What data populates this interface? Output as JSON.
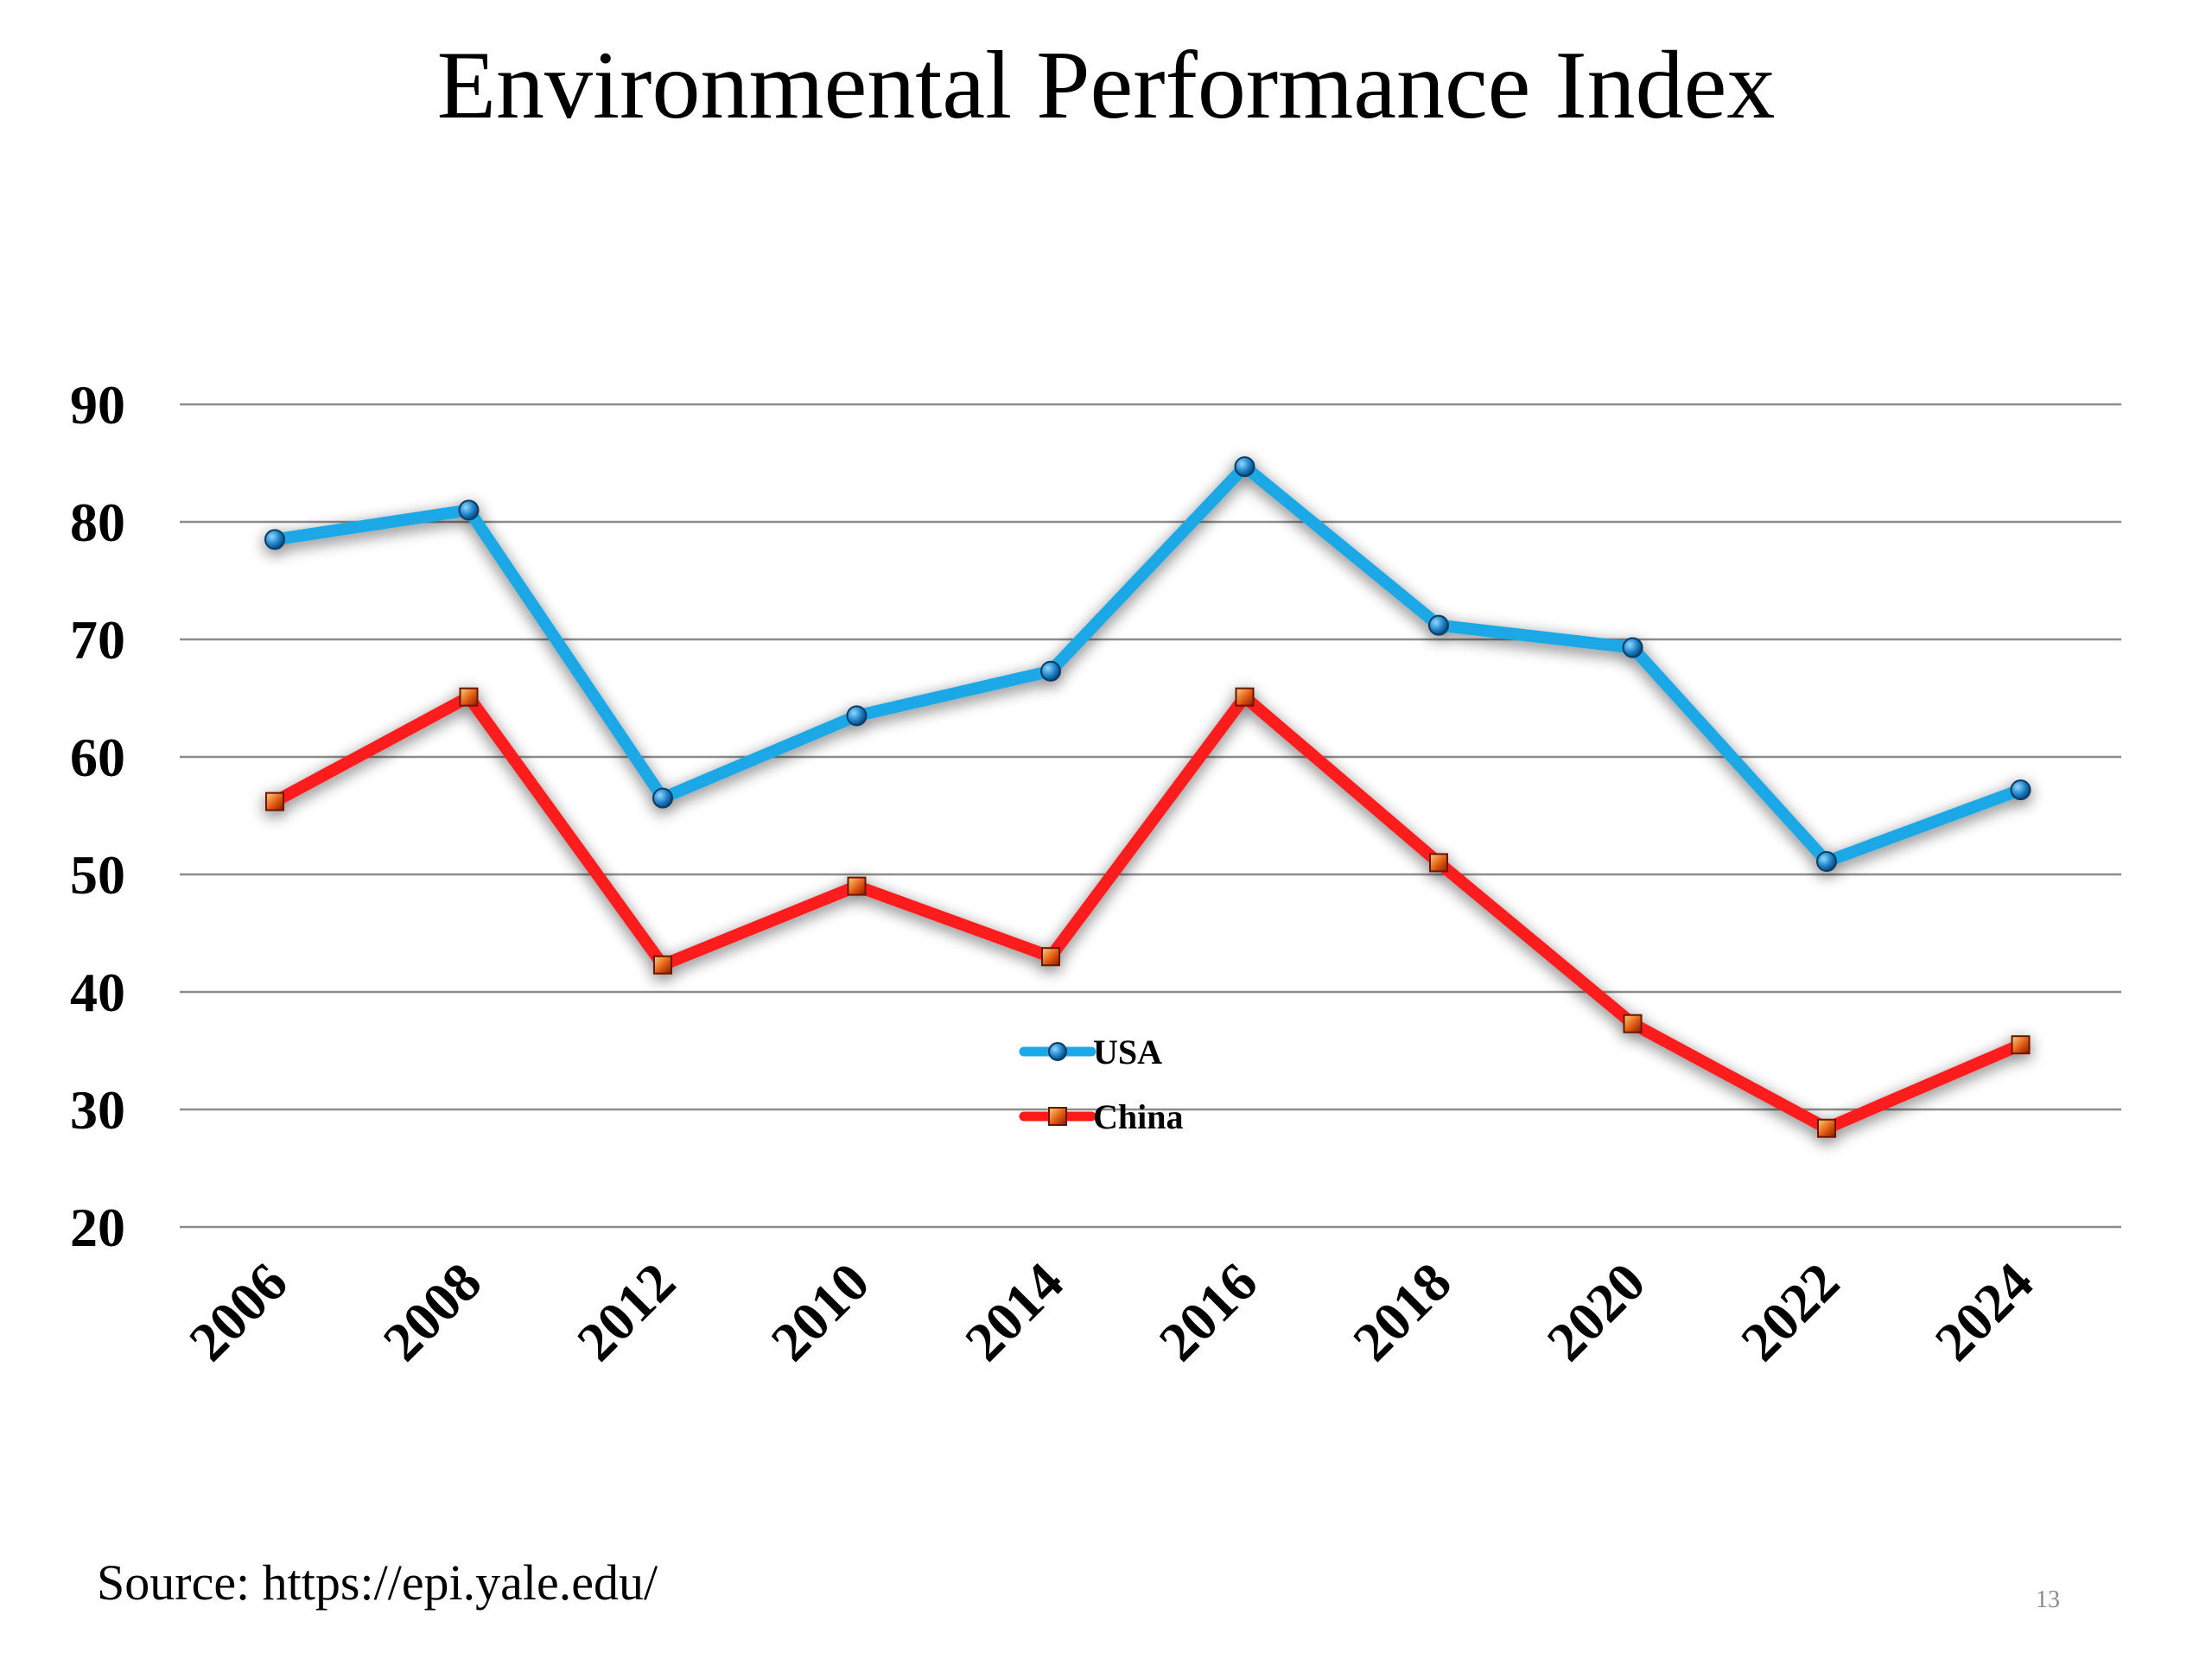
{
  "slide": {
    "title": "Environmental Performance Index",
    "source": "Source: https://epi.yale.edu/",
    "page_number": "13"
  },
  "chart_data": {
    "type": "line",
    "title": "",
    "xlabel": "",
    "ylabel": "",
    "categories": [
      "2006",
      "2008",
      "2012",
      "2010",
      "2014",
      "2016",
      "2018",
      "2020",
      "2022",
      "2024"
    ],
    "y_ticks": [
      "20",
      "30",
      "40",
      "50",
      "60",
      "70",
      "80",
      "90"
    ],
    "ylim": [
      20,
      90
    ],
    "grid": true,
    "legend_position": "center",
    "series": [
      {
        "name": "USA",
        "color": "#1aa8e6",
        "marker": "circle",
        "values": [
          78.5,
          81.0,
          56.5,
          63.5,
          67.3,
          84.7,
          71.2,
          69.3,
          51.1,
          57.2
        ]
      },
      {
        "name": "China",
        "color": "#ff1a1a",
        "marker": "square",
        "values": [
          56.2,
          65.1,
          42.3,
          49.0,
          43.0,
          65.1,
          51.0,
          37.3,
          28.4,
          35.5
        ]
      }
    ]
  }
}
